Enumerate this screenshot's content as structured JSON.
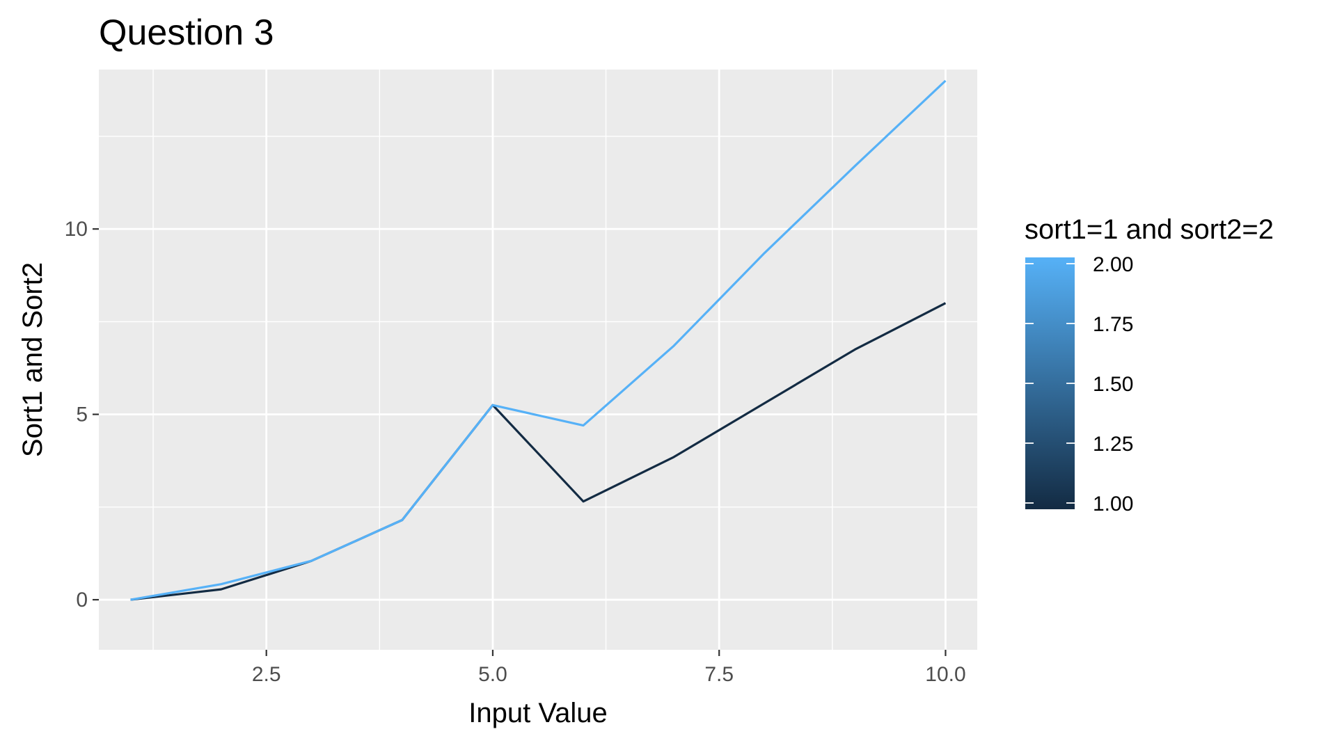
{
  "chart_data": {
    "type": "line",
    "title": "Question 3",
    "xlabel": "Input Value",
    "ylabel": "Sort1 and Sort2",
    "xlim": [
      0.65,
      10.35
    ],
    "ylim": [
      -1.35,
      14.3
    ],
    "x_ticks": [
      2.5,
      5.0,
      7.5,
      10.0
    ],
    "x_tick_labels": [
      "2.5",
      "5.0",
      "7.5",
      "10.0"
    ],
    "x_minor_ticks": [
      1.25,
      3.75,
      6.25,
      8.75
    ],
    "y_ticks": [
      0,
      5,
      10
    ],
    "y_tick_labels": [
      "0",
      "5",
      "10"
    ],
    "y_minor_ticks": [
      2.5,
      7.5,
      12.5
    ],
    "grid": true,
    "panel_background": "#ebebeb",
    "x": [
      1,
      2,
      3,
      4,
      5,
      6,
      7,
      8,
      9,
      10
    ],
    "series": [
      {
        "color_value": 1.0,
        "color": "#132b43",
        "values": [
          0,
          0.28,
          1.05,
          2.15,
          5.25,
          2.65,
          3.85,
          5.3,
          6.75,
          8.0
        ]
      },
      {
        "color_value": 2.0,
        "color": "#56b1f7",
        "values": [
          0,
          0.42,
          1.05,
          2.15,
          5.25,
          4.7,
          6.85,
          9.35,
          11.7,
          14.0
        ]
      }
    ],
    "legend": {
      "title": "sort1=1 and sort2=2",
      "type": "colorbar",
      "placement": "right",
      "range": [
        1.0,
        2.0
      ],
      "low_color": "#132b43",
      "high_color": "#56b1f7",
      "ticks": [
        1.0,
        1.25,
        1.5,
        1.75,
        2.0
      ],
      "tick_labels": [
        "1.00",
        "1.25",
        "1.50",
        "1.75",
        "2.00"
      ]
    }
  }
}
